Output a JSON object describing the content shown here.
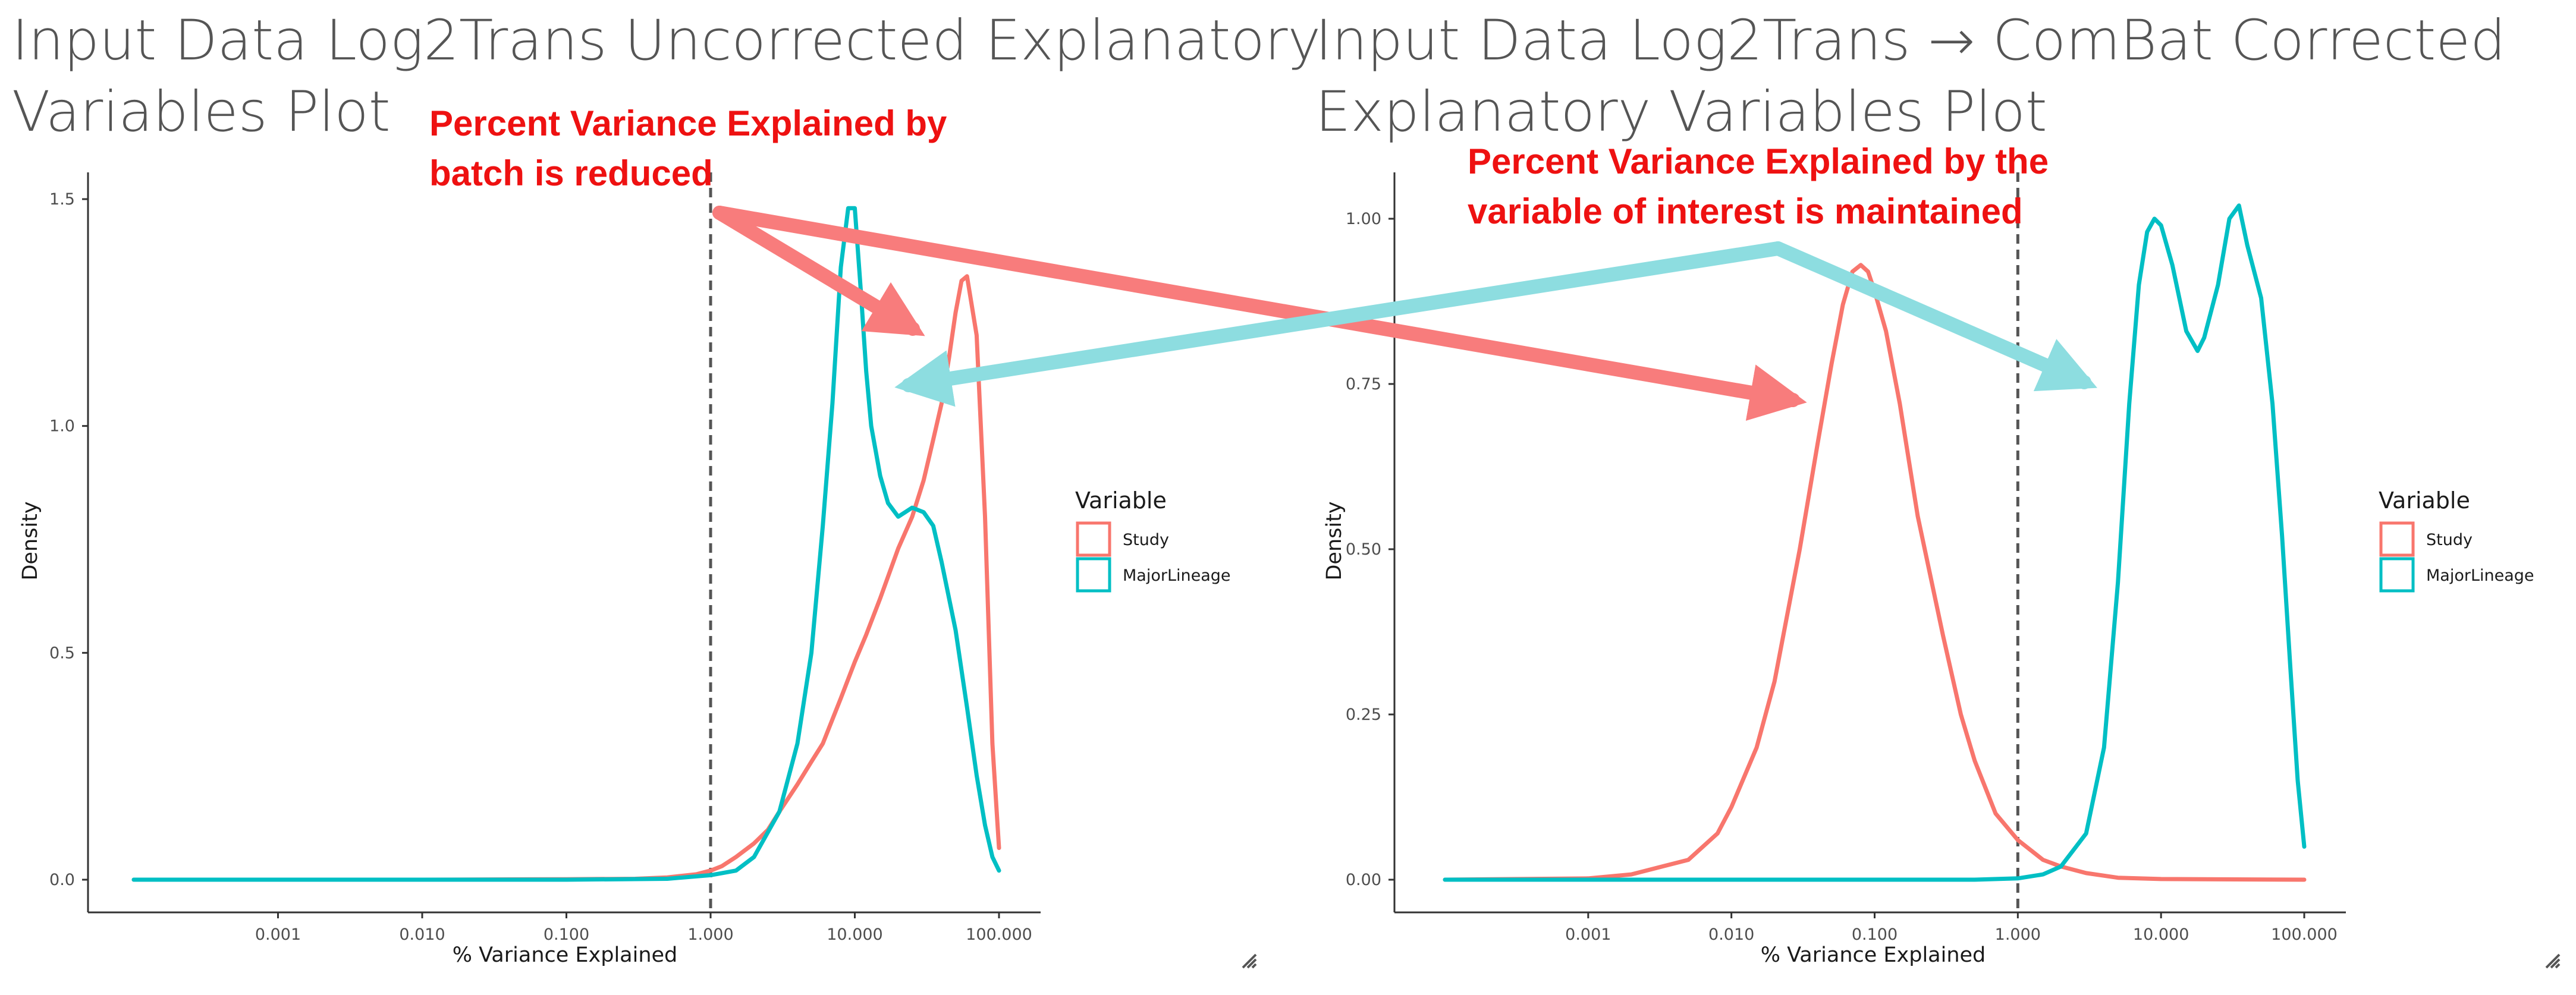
{
  "colors": {
    "study": "#F8766D",
    "major_lineage": "#00BFC4",
    "annotation_text": "#EE1111",
    "arrow_red": "#F87C7C",
    "arrow_teal": "#8DDDE0"
  },
  "chart_data": [
    {
      "type": "line",
      "title_lines": [
        "Input Data Log2Trans Uncorrected Explanatory",
        "Variables Plot"
      ],
      "xlabel": "% Variance Explained",
      "ylabel": "Density",
      "x_scale": "log10",
      "xlim": [
        0.0001,
        100
      ],
      "ylim": [
        0,
        1.5
      ],
      "x_ticks": [
        "0.001",
        "0.010",
        "0.100",
        "1.000",
        "10.000",
        "100.000"
      ],
      "y_ticks": [
        "0.0",
        "0.5",
        "1.0",
        "1.5"
      ],
      "y_tick_values": [
        0,
        0.5,
        1.0,
        1.5
      ],
      "reference_line_x": 1,
      "legend": {
        "title": "Variable",
        "position": "right",
        "entries": [
          "Study",
          "MajorLineage"
        ]
      },
      "series": [
        {
          "name": "Study",
          "color": "#F8766D",
          "x": [
            100,
            90,
            80,
            70,
            60,
            55,
            50,
            45,
            40,
            35,
            30,
            25,
            20,
            15,
            12,
            10,
            8,
            6,
            5,
            4,
            3,
            2.5,
            2,
            1.5,
            1.2,
            1,
            0.8,
            0.5,
            0.3,
            0.1,
            0.01,
            0.001,
            0.0001
          ],
          "y": [
            0.07,
            0.3,
            0.8,
            1.2,
            1.33,
            1.32,
            1.25,
            1.15,
            1.05,
            0.97,
            0.88,
            0.8,
            0.73,
            0.62,
            0.54,
            0.48,
            0.4,
            0.3,
            0.26,
            0.21,
            0.15,
            0.11,
            0.08,
            0.05,
            0.03,
            0.02,
            0.012,
            0.005,
            0.002,
            0.001,
            0.0,
            0.0,
            0.0
          ]
        },
        {
          "name": "MajorLineage",
          "color": "#00BFC4",
          "x": [
            0.0001,
            0.001,
            0.01,
            0.1,
            0.5,
            1,
            1.5,
            2,
            3,
            4,
            5,
            6,
            7,
            8,
            9,
            10,
            11,
            12,
            13,
            15,
            17,
            20,
            25,
            30,
            35,
            40,
            50,
            60,
            70,
            80,
            90,
            100
          ],
          "y": [
            0,
            0,
            0,
            0,
            0.002,
            0.01,
            0.02,
            0.05,
            0.15,
            0.3,
            0.5,
            0.78,
            1.05,
            1.35,
            1.48,
            1.48,
            1.3,
            1.12,
            1.0,
            0.89,
            0.83,
            0.8,
            0.82,
            0.81,
            0.78,
            0.7,
            0.55,
            0.38,
            0.23,
            0.12,
            0.05,
            0.02
          ]
        }
      ],
      "annotation": [
        "Percent Variance Explained by",
        "batch is reduced"
      ]
    },
    {
      "type": "line",
      "title_lines": [
        "Input Data Log2Trans → ComBat Corrected",
        "Explanatory Variables Plot"
      ],
      "xlabel": "% Variance Explained",
      "ylabel": "Density",
      "x_scale": "log10",
      "xlim": [
        0.0001,
        100
      ],
      "ylim": [
        0,
        1.0
      ],
      "x_ticks": [
        "0.001",
        "0.010",
        "0.100",
        "1.000",
        "10.000",
        "100.000"
      ],
      "y_ticks": [
        "0.00",
        "0.25",
        "0.50",
        "0.75",
        "1.00"
      ],
      "y_tick_values": [
        0,
        0.25,
        0.5,
        0.75,
        1.0
      ],
      "reference_line_x": 1,
      "legend": {
        "title": "Variable",
        "position": "right",
        "entries": [
          "Study",
          "MajorLineage"
        ]
      },
      "series": [
        {
          "name": "Study",
          "color": "#F8766D",
          "x": [
            0.0001,
            0.001,
            0.002,
            0.005,
            0.008,
            0.01,
            0.015,
            0.02,
            0.03,
            0.04,
            0.05,
            0.06,
            0.07,
            0.08,
            0.09,
            0.1,
            0.12,
            0.15,
            0.2,
            0.3,
            0.4,
            0.5,
            0.7,
            1,
            1.5,
            2,
            3,
            5,
            10,
            100
          ],
          "y": [
            0,
            0.002,
            0.008,
            0.03,
            0.07,
            0.11,
            0.2,
            0.3,
            0.5,
            0.66,
            0.78,
            0.87,
            0.92,
            0.93,
            0.92,
            0.89,
            0.83,
            0.72,
            0.55,
            0.37,
            0.25,
            0.18,
            0.1,
            0.06,
            0.03,
            0.02,
            0.01,
            0.003,
            0.001,
            0
          ]
        },
        {
          "name": "MajorLineage",
          "color": "#00BFC4",
          "x": [
            0.0001,
            0.01,
            0.1,
            0.5,
            1,
            1.5,
            2,
            3,
            4,
            5,
            6,
            7,
            8,
            9,
            10,
            12,
            15,
            18,
            20,
            25,
            30,
            35,
            40,
            50,
            60,
            70,
            80,
            90,
            100
          ],
          "y": [
            0,
            0,
            0,
            0,
            0.002,
            0.008,
            0.02,
            0.07,
            0.2,
            0.45,
            0.72,
            0.9,
            0.98,
            1.0,
            0.99,
            0.93,
            0.83,
            0.8,
            0.82,
            0.9,
            1.0,
            1.02,
            0.96,
            0.88,
            0.72,
            0.52,
            0.32,
            0.15,
            0.05
          ]
        }
      ],
      "annotation": [
        "Percent Variance Explained by the",
        "variable of interest is maintained"
      ]
    }
  ]
}
